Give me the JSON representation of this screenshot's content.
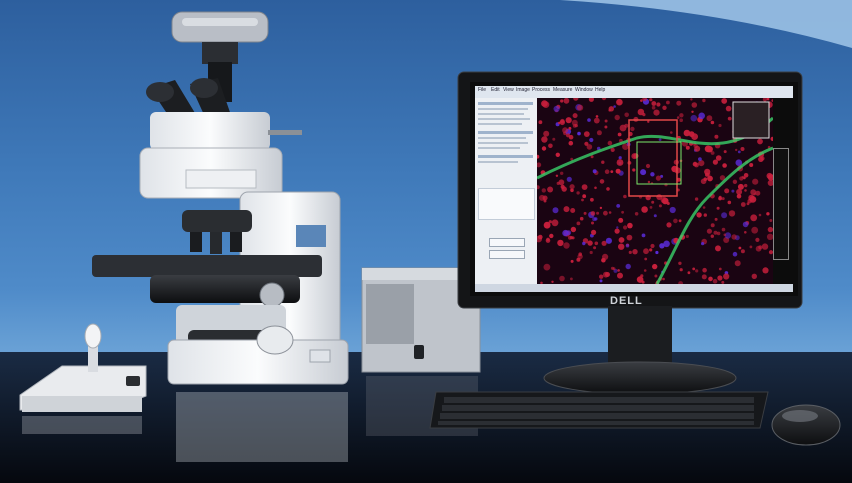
{
  "scene": {
    "description_tag": "microscope-imaging-workstation",
    "monitor_brand": "DELL",
    "colors": {
      "background_top": "#2d5f9e",
      "background_bottom": "#0b1220",
      "tissue_cells": "#c81f3c",
      "fiber_green": "#39d16a",
      "roi_box": "#e24848",
      "inner_roi_box": "#7be86b"
    }
  },
  "software": {
    "menu_items": [
      "File",
      "Edit",
      "View",
      "Image",
      "Process",
      "Measure",
      "Window",
      "Help"
    ]
  }
}
